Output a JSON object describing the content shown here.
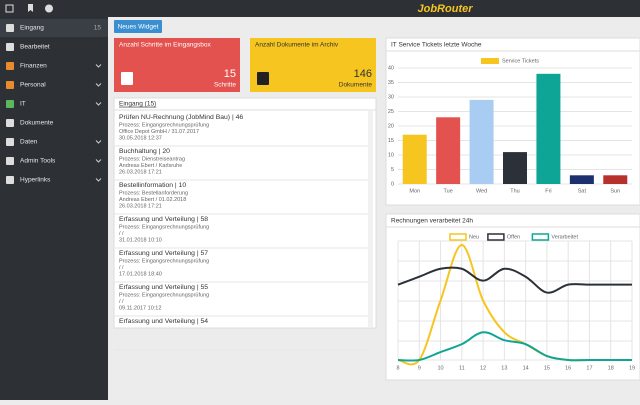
{
  "topbar": {
    "logo": "JobRouter"
  },
  "sidebar": {
    "items": [
      {
        "label": "Eingang",
        "badge": 15
      },
      {
        "label": "Bearbeitet"
      },
      {
        "label": "Finanzen"
      },
      {
        "label": "Personal"
      },
      {
        "label": "IT"
      },
      {
        "label": "Dokumente"
      },
      {
        "label": "Daten"
      },
      {
        "label": "Admin Tools"
      },
      {
        "label": "Hyperlinks"
      }
    ]
  },
  "button": "Neues Widget",
  "widgets": [
    {
      "title": "Anzahl Schritte im Eingangsbox",
      "value": 15,
      "unit": "Schritte",
      "color": "#e3524f"
    },
    {
      "title": "Anzahl Dokumente im Archiv",
      "value": 146,
      "unit": "Dokumente",
      "color": "#f6c51f"
    }
  ],
  "inbox": {
    "title": "Eingang (15)",
    "items": [
      {
        "title": "Prüfen NU-Rechnung (JobMind Bau) | 46",
        "lines": [
          "Prozess: Eingangsrechnungsprüfung",
          "Office Depot GmbH / 31.07.2017",
          "30.05.2018 12:37"
        ]
      },
      {
        "title": "Buchhaltung | 20",
        "lines": [
          "Prozess: Dienstreiseantrag",
          "Andreas Ebert / Karlsruhe",
          "26.03.2018 17:21"
        ]
      },
      {
        "title": "Bestellinformation | 10",
        "lines": [
          "Prozess: Bestellanforderung",
          "Andreas Ebert / 01.02.2018",
          "26.03.2018 17:21"
        ]
      },
      {
        "title": "Erfassung und Verteilung | 58",
        "lines": [
          "Prozess: Eingangsrechnungsprüfung",
          "/ /",
          "31.01.2018 10:10"
        ]
      },
      {
        "title": "Erfassung und Verteilung | 57",
        "lines": [
          "Prozess: Eingangsrechnungsprüfung",
          "/ /",
          "17.01.2018 18:40"
        ]
      },
      {
        "title": "Erfassung und Verteilung | 55",
        "lines": [
          "Prozess: Eingangsrechnungsprüfung",
          "/ /",
          "09.11.2017 10:12"
        ]
      },
      {
        "title": "Erfassung und Verteilung | 54",
        "lines": []
      }
    ]
  },
  "chart_data": [
    {
      "type": "bar",
      "title": "IT Service Tickets letzte Woche",
      "categories": [
        "Mon",
        "Tue",
        "Wed",
        "Thu",
        "Fri",
        "Sat",
        "Sun"
      ],
      "series": [
        {
          "name": "Service Tickets",
          "color": "#f6c51f",
          "colors": [
            "#f6c51f",
            "#e3524f",
            "#a9cdf2",
            "#2c3038",
            "#0fa596",
            "#1c2f6e",
            "#b8302b"
          ],
          "values": [
            17,
            23,
            29,
            11,
            38,
            3,
            3
          ]
        }
      ],
      "ylim": [
        0,
        40
      ],
      "yticks": [
        0,
        5,
        10,
        15,
        20,
        25,
        30,
        35,
        40
      ],
      "grid": true
    },
    {
      "type": "line",
      "title": "Rechnungen verarbeitet 24h",
      "x": [
        8,
        9,
        10,
        11,
        12,
        13,
        14,
        15,
        16,
        17,
        18,
        19
      ],
      "series": [
        {
          "name": "Neu",
          "color": "#f6c51f",
          "values": [
            0,
            0,
            15,
            29,
            15,
            7,
            4,
            1,
            0,
            0,
            0,
            0
          ]
        },
        {
          "name": "Offen",
          "color": "#2c3038",
          "values": [
            19,
            21,
            23,
            23,
            20,
            23,
            21,
            17,
            19,
            19,
            19,
            19
          ]
        },
        {
          "name": "Verarbeitet",
          "color": "#0fa596",
          "values": [
            0,
            0,
            2,
            4,
            7,
            5,
            4,
            1,
            0,
            0,
            0,
            0
          ]
        }
      ],
      "xlim": [
        8,
        19
      ],
      "xticks": [
        8,
        9,
        10,
        11,
        12,
        13,
        14,
        15,
        16,
        17,
        18,
        19
      ],
      "ylim": [
        0,
        30
      ],
      "grid": true
    }
  ]
}
